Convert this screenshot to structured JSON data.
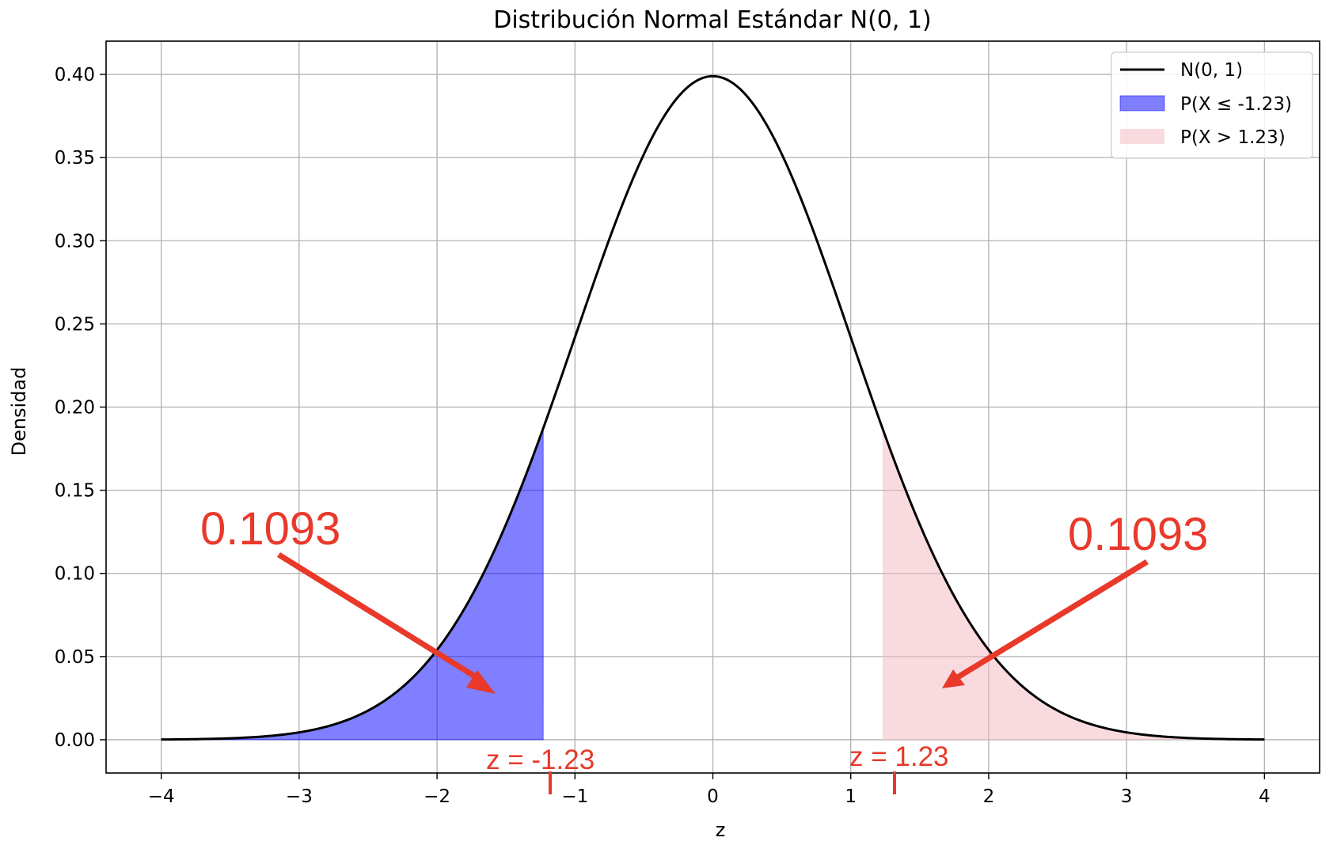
{
  "chart_data": {
    "type": "area",
    "title": "Distribución Normal Estándar N(0, 1)",
    "xlabel": "z",
    "ylabel": "Densidad",
    "xlim": [
      -4.4,
      4.4
    ],
    "ylim": [
      -0.02,
      0.42
    ],
    "x_ticks": [
      -4,
      -3,
      -2,
      -1,
      0,
      1,
      2,
      3,
      4
    ],
    "x_tick_labels": [
      "−4",
      "−3",
      "−2",
      "−1",
      "0",
      "1",
      "2",
      "3",
      "4"
    ],
    "y_ticks": [
      0.0,
      0.05,
      0.1,
      0.15,
      0.2,
      0.25,
      0.3,
      0.35,
      0.4
    ],
    "y_tick_labels": [
      "0.00",
      "0.05",
      "0.10",
      "0.15",
      "0.20",
      "0.25",
      "0.30",
      "0.35",
      "0.40"
    ],
    "grid": true,
    "legend_position": "top-right",
    "series": [
      {
        "name": "N(0, 1)",
        "kind": "line",
        "color": "#000000",
        "x": [
          -4.0,
          -3.5,
          -3.0,
          -2.5,
          -2.0,
          -1.5,
          -1.23,
          -1.0,
          -0.5,
          0.0,
          0.5,
          1.0,
          1.23,
          1.5,
          2.0,
          2.5,
          3.0,
          3.5,
          4.0
        ],
        "y": [
          0.0001,
          0.0009,
          0.0044,
          0.0175,
          0.054,
          0.1295,
          0.1872,
          0.242,
          0.3521,
          0.3989,
          0.3521,
          0.242,
          0.1872,
          0.1295,
          0.054,
          0.0175,
          0.0044,
          0.0009,
          0.0001
        ]
      },
      {
        "name": "P(X ≤ -1.23)",
        "kind": "fill",
        "color": "#0000ff",
        "x_range": [
          -4.0,
          -1.23
        ]
      },
      {
        "name": "P(X > 1.23)",
        "kind": "fill",
        "color": "#f4b8c0",
        "x_range": [
          1.23,
          4.0
        ]
      }
    ],
    "annotations": [
      {
        "text": "0.1093",
        "target_x": -1.6,
        "target_y": 0.029
      },
      {
        "text": "0.1093",
        "target_x": 1.6,
        "target_y": 0.032
      },
      {
        "text": "z = -1.23",
        "x": -1.23
      },
      {
        "text": "z = 1.23",
        "x": 1.23
      }
    ],
    "annotation_color": "#e8392a"
  }
}
